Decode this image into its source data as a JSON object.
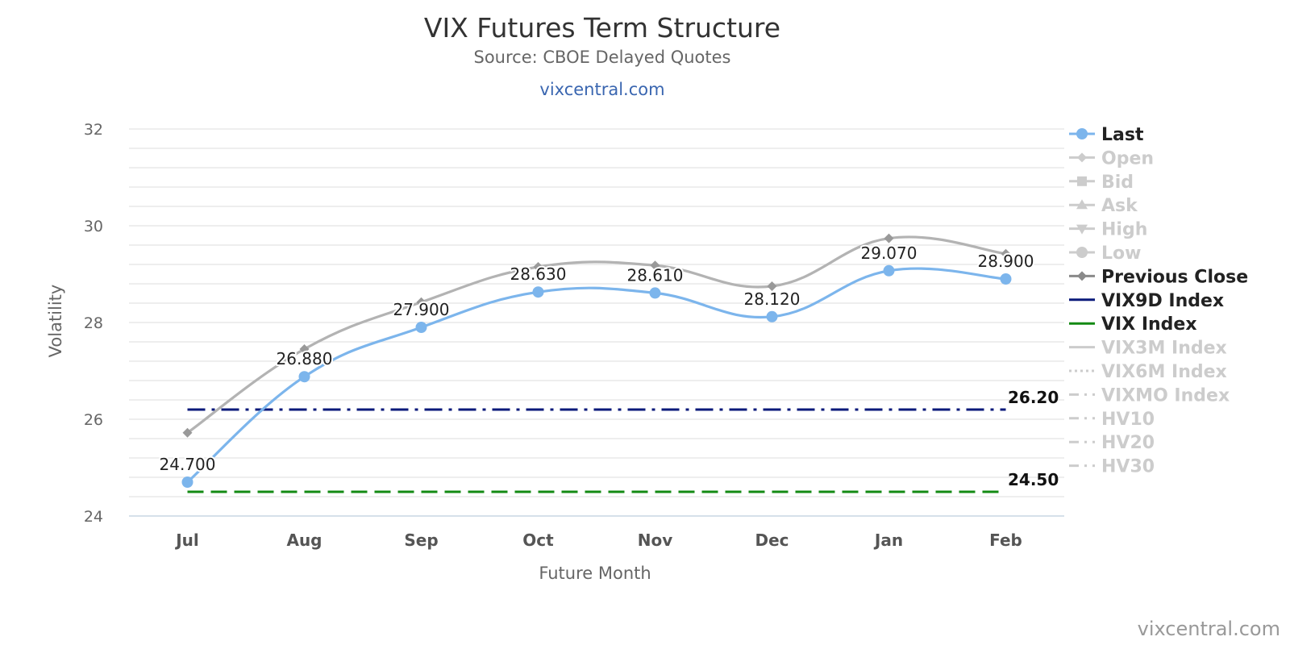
{
  "header": {
    "title": "VIX Futures Term Structure",
    "subtitle": "Source: CBOE Delayed Quotes",
    "link": "vixcentral.com"
  },
  "credit": "vixcentral.com",
  "chart_data": {
    "type": "line",
    "xlabel": "Future Month",
    "ylabel": "Volatility",
    "categories": [
      "Jul",
      "Aug",
      "Sep",
      "Oct",
      "Nov",
      "Dec",
      "Jan",
      "Feb"
    ],
    "ylim": [
      24,
      32
    ],
    "yticks": [
      "24",
      "26",
      "28",
      "30",
      "32"
    ],
    "grid": true,
    "legend_position": "right",
    "series": [
      {
        "name": "Last",
        "values": [
          24.7,
          26.88,
          27.9,
          28.63,
          28.61,
          28.12,
          29.07,
          28.9
        ],
        "labels": [
          "24.700",
          "26.880",
          "27.900",
          "28.630",
          "28.610",
          "28.120",
          "29.070",
          "28.900"
        ],
        "color": "#7cb5ec",
        "marker": "circle",
        "visible": true
      },
      {
        "name": "Previous Close",
        "values": [
          25.72,
          27.45,
          28.42,
          29.15,
          29.18,
          28.75,
          29.74,
          29.42
        ],
        "color": "#b3b3b3",
        "marker": "diamond",
        "visible": true
      }
    ],
    "reference_lines": [
      {
        "name": "VIX9D Index",
        "value": 26.2,
        "label": "26.20",
        "color": "#0a1a7a",
        "style": "dash-dot"
      },
      {
        "name": "VIX Index",
        "value": 24.5,
        "label": "24.50",
        "color": "#138a13",
        "style": "dash"
      }
    ],
    "legend": [
      {
        "name": "Last",
        "symbol": "circle",
        "active": true,
        "color": "#7cb5ec"
      },
      {
        "name": "Open",
        "symbol": "diamond",
        "active": false,
        "color": "#cccccc"
      },
      {
        "name": "Bid",
        "symbol": "square",
        "active": false,
        "color": "#cccccc"
      },
      {
        "name": "Ask",
        "symbol": "triangle",
        "active": false,
        "color": "#cccccc"
      },
      {
        "name": "High",
        "symbol": "triangle-down",
        "active": false,
        "color": "#cccccc"
      },
      {
        "name": "Low",
        "symbol": "circle",
        "active": false,
        "color": "#cccccc"
      },
      {
        "name": "Previous Close",
        "symbol": "diamond",
        "active": true,
        "color": "#8a8a8a"
      },
      {
        "name": "VIX9D Index",
        "symbol": "line",
        "active": true,
        "color": "#0a1a7a"
      },
      {
        "name": "VIX Index",
        "symbol": "line",
        "active": true,
        "color": "#138a13"
      },
      {
        "name": "VIX3M Index",
        "symbol": "line",
        "active": false,
        "color": "#cccccc"
      },
      {
        "name": "VIX6M Index",
        "symbol": "dot",
        "active": false,
        "color": "#cccccc"
      },
      {
        "name": "VIXMO Index",
        "symbol": "dash-dot",
        "active": false,
        "color": "#cccccc"
      },
      {
        "name": "HV10",
        "symbol": "dash-dot",
        "active": false,
        "color": "#cccccc"
      },
      {
        "name": "HV20",
        "symbol": "dash-dot",
        "active": false,
        "color": "#cccccc"
      },
      {
        "name": "HV30",
        "symbol": "dash-dot",
        "active": false,
        "color": "#cccccc"
      }
    ]
  }
}
